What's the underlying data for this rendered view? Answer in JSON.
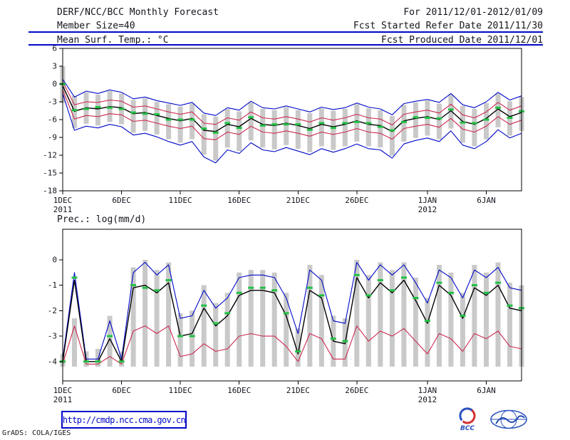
{
  "header": {
    "title": "DERF/NCC/BCC Monthly Forecast",
    "date_range": "For 2011/12/01-2012/01/09",
    "member_size": "Member Size=40",
    "fcst_start": "Fcst Started Refer Date 2011/11/30",
    "fcst_produced": "Fcst Produced Date 2011/12/01"
  },
  "footer": {
    "url": "http://cmdp.ncc.cma.gov.cn",
    "credit": "GrADS: COLA/IGES",
    "bcc_logo_text": "BCC"
  },
  "colors": {
    "rule_blue": "#0008c8",
    "envelope_blue": "#0008c8",
    "envelope_red": "#cc2a50",
    "mean_black": "#000000",
    "obs_green": "#22c044",
    "spread_bar_gray": "#c9c9c9"
  },
  "chart_data": [
    {
      "type": "line",
      "name": "temperature-panel",
      "title": "Mean Surf. Temp.: °C",
      "xlabel": "",
      "ylabel": "",
      "ylim": [
        -18,
        6
      ],
      "yticks": [
        6,
        3,
        0,
        -3,
        -6,
        -9,
        -12,
        -15,
        -18
      ],
      "grid": false,
      "legend": false,
      "xticks": [
        {
          "day": 0,
          "label": "1DEC",
          "sub": "2011"
        },
        {
          "day": 5,
          "label": "6DEC"
        },
        {
          "day": 10,
          "label": "11DEC"
        },
        {
          "day": 15,
          "label": "16DEC"
        },
        {
          "day": 20,
          "label": "21DEC"
        },
        {
          "day": 25,
          "label": "26DEC"
        },
        {
          "day": 31,
          "label": "1JAN",
          "sub": "2012"
        },
        {
          "day": 36,
          "label": "6JAN"
        }
      ],
      "series": [
        {
          "name": "blue-upper-envelope",
          "color": "#0008c8",
          "width": 1.1,
          "values": [
            0.8,
            -2.2,
            -1.2,
            -1.6,
            -1.0,
            -1.4,
            -2.5,
            -2.2,
            -2.8,
            -3.2,
            -3.6,
            -3.1,
            -4.9,
            -5.3,
            -4.0,
            -4.4,
            -2.9,
            -4.0,
            -4.2,
            -3.7,
            -4.2,
            -4.7,
            -3.9,
            -4.3,
            -4.0,
            -3.2,
            -3.9,
            -4.2,
            -5.2,
            -3.3,
            -2.9,
            -2.6,
            -3.1,
            -1.6,
            -3.5,
            -4.0,
            -3.0,
            -1.4,
            -2.7,
            -2.0
          ]
        },
        {
          "name": "blue-lower-envelope",
          "color": "#0008c8",
          "width": 1.1,
          "values": [
            -1.6,
            -7.8,
            -7.1,
            -7.4,
            -6.8,
            -7.2,
            -8.6,
            -8.3,
            -8.9,
            -9.7,
            -10.3,
            -9.7,
            -12.3,
            -13.3,
            -11.1,
            -11.7,
            -9.9,
            -11.1,
            -11.4,
            -10.7,
            -11.3,
            -11.9,
            -10.9,
            -11.5,
            -10.9,
            -10.1,
            -10.9,
            -11.1,
            -12.5,
            -10.1,
            -9.5,
            -9.1,
            -9.7,
            -7.9,
            -10.3,
            -10.9,
            -9.7,
            -7.7,
            -9.1,
            -8.3
          ]
        },
        {
          "name": "red-upper-envelope",
          "color": "#cc2a50",
          "width": 1.1,
          "values": [
            0.4,
            -3.5,
            -3.0,
            -3.1,
            -2.7,
            -2.9,
            -3.9,
            -3.7,
            -4.2,
            -4.7,
            -5.1,
            -4.7,
            -6.6,
            -6.8,
            -5.7,
            -6.1,
            -4.7,
            -5.7,
            -5.9,
            -5.5,
            -5.9,
            -6.4,
            -5.7,
            -6.1,
            -5.7,
            -5.1,
            -5.7,
            -5.9,
            -6.9,
            -5.1,
            -4.7,
            -4.4,
            -4.9,
            -3.4,
            -5.2,
            -5.7,
            -4.7,
            -3.1,
            -4.4,
            -3.7
          ]
        },
        {
          "name": "red-lower-envelope",
          "color": "#cc2a50",
          "width": 1.1,
          "values": [
            -1.0,
            -5.9,
            -5.3,
            -5.5,
            -5.0,
            -5.2,
            -6.3,
            -6.1,
            -6.6,
            -7.1,
            -7.5,
            -7.1,
            -9.2,
            -9.4,
            -8.1,
            -8.5,
            -7.1,
            -8.1,
            -8.3,
            -7.9,
            -8.3,
            -8.8,
            -8.1,
            -8.5,
            -8.1,
            -7.5,
            -8.1,
            -8.3,
            -9.3,
            -7.5,
            -7.1,
            -6.8,
            -7.3,
            -5.8,
            -7.6,
            -8.1,
            -7.1,
            -5.5,
            -6.8,
            -6.1
          ]
        },
        {
          "name": "ensemble-mean",
          "color": "#000000",
          "width": 1.4,
          "values": [
            -0.3,
            -4.6,
            -4.0,
            -4.2,
            -3.8,
            -4.0,
            -5.0,
            -4.8,
            -5.3,
            -5.8,
            -6.2,
            -5.8,
            -7.8,
            -8.0,
            -6.8,
            -7.2,
            -5.8,
            -6.8,
            -7.0,
            -6.6,
            -7.0,
            -7.5,
            -6.8,
            -7.2,
            -6.8,
            -6.2,
            -6.8,
            -7.0,
            -8.0,
            -6.2,
            -5.8,
            -5.5,
            -6.0,
            -4.5,
            -6.3,
            -6.8,
            -5.8,
            -4.2,
            -5.5,
            -4.8
          ]
        }
      ],
      "bars": {
        "name": "ensemble-spread-bar",
        "color": "#c9c9c9",
        "high": [
          3.0,
          -2.0,
          -1.4,
          -1.8,
          -1.2,
          -1.6,
          -2.7,
          -2.4,
          -3.0,
          -3.4,
          -3.8,
          -3.3,
          -5.1,
          -5.5,
          -4.2,
          -4.6,
          -3.1,
          -4.2,
          -4.4,
          -3.9,
          -4.4,
          -4.9,
          -4.1,
          -4.5,
          -4.2,
          -3.4,
          -4.1,
          -4.4,
          -5.4,
          -3.5,
          -3.1,
          -2.8,
          -3.3,
          -1.8,
          -3.7,
          -4.2,
          -3.2,
          -1.6,
          -2.9,
          -2.2
        ],
        "low": [
          -3.2,
          -7.4,
          -6.7,
          -7.0,
          -6.4,
          -6.8,
          -8.2,
          -7.9,
          -8.5,
          -9.3,
          -9.9,
          -9.3,
          -11.9,
          -12.9,
          -10.7,
          -11.3,
          -9.5,
          -10.7,
          -11.0,
          -10.3,
          -10.9,
          -11.5,
          -10.5,
          -11.1,
          -10.5,
          -9.7,
          -10.5,
          -10.7,
          -12.1,
          -9.7,
          -9.1,
          -8.7,
          -9.3,
          -7.5,
          -9.9,
          -10.5,
          -9.3,
          -7.3,
          -8.7,
          -7.9
        ]
      },
      "markers": {
        "name": "green-dash-marker",
        "color": "#22c044",
        "values": [
          0.0,
          -4.4,
          -4.2,
          -3.9,
          -4.0,
          -4.2,
          -4.8,
          -5.0,
          -5.1,
          -6.0,
          -6.0,
          -6.0,
          -7.5,
          -8.2,
          -6.6,
          -7.4,
          -5.6,
          -7.0,
          -6.8,
          -6.8,
          -6.8,
          -7.7,
          -6.6,
          -7.4,
          -6.6,
          -6.4,
          -6.6,
          -7.2,
          -7.8,
          -6.4,
          -5.6,
          -5.7,
          -5.8,
          -4.3,
          -6.5,
          -6.6,
          -6.0,
          -4.0,
          -5.7,
          -4.6
        ]
      }
    },
    {
      "type": "line",
      "name": "precipitation-panel",
      "title": "Prec.: log(mm/d)",
      "xlabel": "",
      "ylabel": "",
      "ylim": [
        -4.76,
        1.2
      ],
      "yticks": [
        0,
        -1,
        -2,
        -3,
        -4
      ],
      "grid": false,
      "legend": false,
      "xticks": [
        {
          "day": 0,
          "label": "1DEC",
          "sub": "2011"
        },
        {
          "day": 5,
          "label": "6DEC"
        },
        {
          "day": 10,
          "label": "11DEC"
        },
        {
          "day": 15,
          "label": "16DEC"
        },
        {
          "day": 20,
          "label": "21DEC"
        },
        {
          "day": 25,
          "label": "26DEC"
        },
        {
          "day": 31,
          "label": "1JAN",
          "sub": "2012"
        },
        {
          "day": 36,
          "label": "6JAN"
        }
      ],
      "series": [
        {
          "name": "blue-upper-envelope",
          "color": "#0008c8",
          "width": 1.1,
          "values": [
            -3.9,
            -0.5,
            -3.9,
            -3.9,
            -2.4,
            -3.9,
            -0.5,
            -0.1,
            -0.6,
            -0.2,
            -2.3,
            -2.2,
            -1.2,
            -1.9,
            -1.5,
            -0.7,
            -0.6,
            -0.6,
            -0.7,
            -1.5,
            -2.9,
            -0.4,
            -0.8,
            -2.4,
            -2.5,
            -0.1,
            -0.8,
            -0.2,
            -0.6,
            -0.2,
            -0.9,
            -1.7,
            -0.4,
            -0.7,
            -1.5,
            -0.4,
            -0.7,
            -0.3,
            -1.1,
            -1.2
          ]
        },
        {
          "name": "red-lower-envelope",
          "color": "#cc2a50",
          "width": 1.1,
          "values": [
            -4.1,
            -2.6,
            -4.1,
            -4.1,
            -3.8,
            -4.1,
            -2.8,
            -2.6,
            -2.9,
            -2.6,
            -3.8,
            -3.7,
            -3.3,
            -3.6,
            -3.5,
            -3.0,
            -2.9,
            -3.0,
            -3.0,
            -3.4,
            -4.0,
            -2.9,
            -3.1,
            -3.9,
            -3.9,
            -2.6,
            -3.2,
            -2.8,
            -3.0,
            -2.7,
            -3.2,
            -3.7,
            -2.9,
            -3.1,
            -3.6,
            -2.9,
            -3.1,
            -2.8,
            -3.4,
            -3.5
          ]
        },
        {
          "name": "ensemble-mean",
          "color": "#000000",
          "width": 1.4,
          "values": [
            -4.0,
            -0.8,
            -4.0,
            -4.0,
            -3.1,
            -4.0,
            -1.1,
            -1.0,
            -1.3,
            -0.9,
            -3.0,
            -2.9,
            -1.9,
            -2.6,
            -2.2,
            -1.4,
            -1.2,
            -1.2,
            -1.3,
            -2.2,
            -3.7,
            -1.2,
            -1.5,
            -3.2,
            -3.3,
            -0.7,
            -1.5,
            -0.9,
            -1.3,
            -0.8,
            -1.6,
            -2.5,
            -1.0,
            -1.4,
            -2.3,
            -1.1,
            -1.4,
            -1.0,
            -1.9,
            -2.0
          ]
        }
      ],
      "bars": {
        "name": "ensemble-spread-bar",
        "color": "#c9c9c9",
        "high": [
          -3.7,
          -2.3,
          -3.6,
          -3.5,
          -2.2,
          -3.6,
          -0.3,
          0.0,
          -0.4,
          -0.1,
          -2.1,
          -2.0,
          -1.0,
          -1.7,
          -1.3,
          -0.5,
          -0.4,
          -0.4,
          -0.5,
          -1.3,
          -2.7,
          -0.2,
          -0.6,
          -2.2,
          -2.3,
          0.0,
          -0.6,
          -0.1,
          -0.4,
          -0.1,
          -0.7,
          -1.5,
          -0.2,
          -0.5,
          -1.3,
          -0.2,
          -0.5,
          -0.1,
          -0.9,
          -1.0
        ],
        "low": [
          -4.2,
          -4.2,
          -4.2,
          -4.2,
          -4.2,
          -4.2,
          -4.2,
          -4.2,
          -4.2,
          -4.2,
          -4.2,
          -4.2,
          -4.2,
          -4.2,
          -4.2,
          -4.2,
          -4.2,
          -4.2,
          -4.2,
          -4.2,
          -4.2,
          -4.2,
          -4.2,
          -4.2,
          -4.2,
          -4.2,
          -4.2,
          -4.2,
          -4.2,
          -4.2,
          -4.2,
          -4.2,
          -4.2,
          -4.2,
          -4.2,
          -4.2,
          -4.2,
          -4.2,
          -4.2,
          -4.2
        ]
      },
      "markers": {
        "name": "green-dash-marker",
        "color": "#22c044",
        "values": [
          -4.0,
          -0.7,
          -4.0,
          -4.0,
          -3.0,
          -4.0,
          -1.0,
          -1.1,
          -1.2,
          -0.8,
          -3.0,
          -3.0,
          -1.8,
          -2.5,
          -2.1,
          -1.3,
          -1.1,
          -1.1,
          -1.2,
          -2.1,
          -3.6,
          -1.1,
          -1.4,
          -3.1,
          -3.2,
          -0.6,
          -1.4,
          -0.8,
          -1.2,
          -0.7,
          -1.5,
          -2.4,
          -0.9,
          -1.3,
          -2.2,
          -1.0,
          -1.3,
          -0.9,
          -1.8,
          -1.9
        ]
      }
    }
  ]
}
